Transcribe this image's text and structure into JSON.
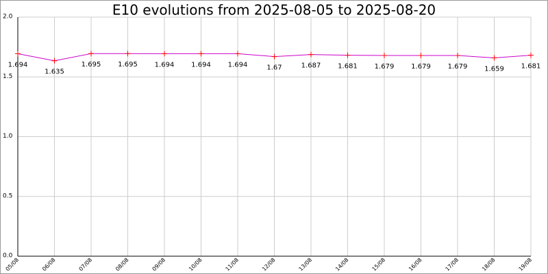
{
  "chart_data": {
    "type": "line",
    "title": "E10 evolutions from 2025-08-05 to 2025-08-20",
    "categories": [
      "05/08",
      "06/08",
      "07/08",
      "08/08",
      "09/08",
      "10/08",
      "11/08",
      "12/08",
      "13/08",
      "14/08",
      "15/08",
      "16/08",
      "17/08",
      "18/08",
      "19/08"
    ],
    "series": [
      {
        "name": "E10",
        "color": "#cc00cc",
        "marker_color": "#ff0000",
        "values": [
          1.694,
          1.635,
          1.695,
          1.695,
          1.694,
          1.694,
          1.694,
          1.67,
          1.687,
          1.681,
          1.679,
          1.679,
          1.679,
          1.659,
          1.681
        ]
      }
    ],
    "ylim": [
      0,
      2
    ],
    "yticks": [
      {
        "value": 0,
        "label": "0.0"
      },
      0.5,
      {
        "value": 1,
        "label": "1.0"
      },
      1.5,
      {
        "value": 2,
        "label": "2.0"
      }
    ],
    "grid": true
  }
}
